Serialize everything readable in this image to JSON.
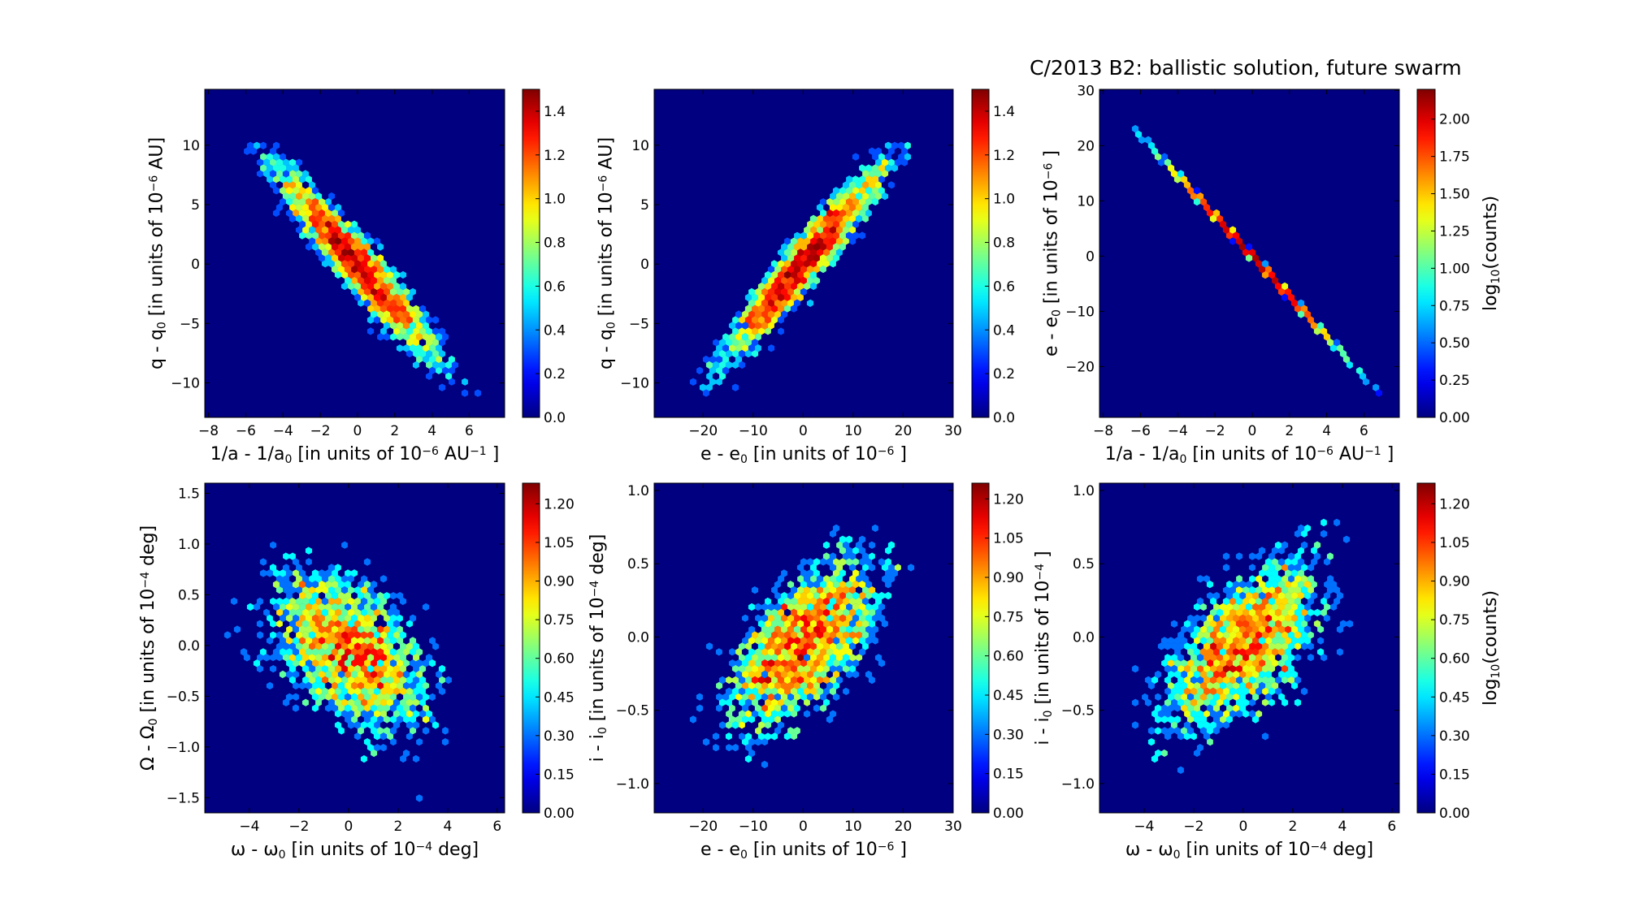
{
  "chart_data": {
    "type": "hexbin",
    "title": "C/2013 B2:  ballistic solution, future swarm",
    "colormap": "jet",
    "background_color": "#000080",
    "grid": false,
    "panels": [
      {
        "xlabel": [
          [
            "1/a - 1/a",
            ""
          ],
          [
            "0",
            "sub"
          ],
          [
            " [in units of 10",
            ""
          ],
          [
            "−6",
            "sup"
          ],
          [
            "  AU",
            ""
          ],
          [
            "−1",
            "sup"
          ],
          [
            " ]",
            ""
          ]
        ],
        "ylabel": [
          [
            "q - q",
            ""
          ],
          [
            "0",
            "sub"
          ],
          [
            "  [in units of 10",
            ""
          ],
          [
            "−6",
            "sup"
          ],
          [
            "  AU]",
            ""
          ]
        ],
        "xlim": [
          -8.2,
          7.9
        ],
        "ylim": [
          -12.9,
          14.7
        ],
        "xticks": [
          -8,
          -6,
          -4,
          -2,
          0,
          2,
          4,
          6
        ],
        "xtick_labels": [
          "−8",
          "−6",
          "−4",
          "−2",
          "0",
          "2",
          "4",
          "6"
        ],
        "yticks": [
          -10,
          -5,
          0,
          5,
          10
        ],
        "ytick_labels": [
          "−10",
          "−5",
          "0",
          "5",
          "10"
        ],
        "colorbar": {
          "range": [
            0,
            1.5
          ],
          "ticks": [
            0,
            0.2,
            0.4,
            0.6,
            0.8,
            1.0,
            1.2,
            1.4
          ],
          "tick_labels": [
            "0.0",
            "0.2",
            "0.4",
            "0.6",
            "0.8",
            "1.0",
            "1.2",
            "1.4"
          ],
          "label": []
        },
        "distribution": {
          "x_center": 0,
          "y_center": 0,
          "x_std": 2.3,
          "y_std": 4.3,
          "correlation": -0.95
        }
      },
      {
        "xlabel": [
          [
            "e - e",
            ""
          ],
          [
            "0",
            "sub"
          ],
          [
            " [in units of 10",
            ""
          ],
          [
            "−6",
            "sup"
          ],
          [
            " ]",
            ""
          ]
        ],
        "ylabel": [
          [
            "q - q",
            ""
          ],
          [
            "0",
            "sub"
          ],
          [
            "  [in units of 10",
            ""
          ],
          [
            "−6",
            "sup"
          ],
          [
            "  AU]",
            ""
          ]
        ],
        "xlim": [
          -29.8,
          30
        ],
        "ylim": [
          -12.9,
          14.7
        ],
        "xticks": [
          -20,
          -10,
          0,
          10,
          20,
          30
        ],
        "xtick_labels": [
          "−20",
          "−10",
          "0",
          "10",
          "20",
          "30"
        ],
        "yticks": [
          -10,
          -5,
          0,
          5,
          10
        ],
        "ytick_labels": [
          "−10",
          "−5",
          "0",
          "5",
          "10"
        ],
        "colorbar": {
          "range": [
            0,
            1.5
          ],
          "ticks": [
            0,
            0.2,
            0.4,
            0.6,
            0.8,
            1.0,
            1.2,
            1.4
          ],
          "tick_labels": [
            "0.0",
            "0.2",
            "0.4",
            "0.6",
            "0.8",
            "1.0",
            "1.2",
            "1.4"
          ],
          "label": []
        },
        "distribution": {
          "x_center": 0,
          "y_center": 0,
          "x_std": 8.4,
          "y_std": 4.3,
          "correlation": 0.95
        }
      },
      {
        "xlabel": [
          [
            "1/a - 1/a",
            ""
          ],
          [
            "0",
            "sub"
          ],
          [
            " [in units of 10",
            ""
          ],
          [
            "−6",
            "sup"
          ],
          [
            "  AU",
            ""
          ],
          [
            "−1",
            "sup"
          ],
          [
            " ]",
            ""
          ]
        ],
        "ylabel": [
          [
            "e - e",
            ""
          ],
          [
            "0",
            "sub"
          ],
          [
            "  [in units of 10",
            ""
          ],
          [
            "−6",
            "sup"
          ],
          [
            " ]",
            ""
          ]
        ],
        "xlim": [
          -8.2,
          7.9
        ],
        "ylim": [
          -29.2,
          30.2
        ],
        "xticks": [
          -8,
          -6,
          -4,
          -2,
          0,
          2,
          4,
          6
        ],
        "xtick_labels": [
          "−8",
          "−6",
          "−4",
          "−2",
          "0",
          "2",
          "4",
          "6"
        ],
        "yticks": [
          -20,
          -10,
          0,
          10,
          20,
          30
        ],
        "ytick_labels": [
          "−20",
          "−10",
          "0",
          "10",
          "20",
          "30"
        ],
        "colorbar": {
          "range": [
            0,
            2.2
          ],
          "ticks": [
            0,
            0.25,
            0.5,
            0.75,
            1.0,
            1.25,
            1.5,
            1.75,
            2.0
          ],
          "tick_labels": [
            "0.00",
            "0.25",
            "0.50",
            "0.75",
            "1.00",
            "1.25",
            "1.50",
            "1.75",
            "2.00"
          ],
          "label": [
            [
              "log",
              ""
            ],
            [
              "10",
              "sub"
            ],
            [
              "(counts)",
              ""
            ]
          ]
        },
        "distribution": {
          "x_center": 0,
          "y_center": 0,
          "x_std": 2.3,
          "y_std": 8.4,
          "correlation": -0.9999
        }
      },
      {
        "xlabel": [
          [
            "ω - ω",
            ""
          ],
          [
            "0",
            "sub"
          ],
          [
            " [in units of 10",
            ""
          ],
          [
            "−4",
            "sup"
          ],
          [
            "  deg]",
            ""
          ]
        ],
        "ylabel": [
          [
            "Ω - Ω",
            ""
          ],
          [
            "0",
            "sub"
          ],
          [
            "  [in units of 10",
            ""
          ],
          [
            "−4",
            "sup"
          ],
          [
            "  deg]",
            ""
          ]
        ],
        "xlim": [
          -5.8,
          6.3
        ],
        "ylim": [
          -1.65,
          1.6
        ],
        "xticks": [
          -4,
          -2,
          0,
          2,
          4,
          6
        ],
        "xtick_labels": [
          "−4",
          "−2",
          "0",
          "2",
          "4",
          "6"
        ],
        "yticks": [
          -1.5,
          -1.0,
          -0.5,
          0.0,
          0.5,
          1.0,
          1.5
        ],
        "ytick_labels": [
          "−1.5",
          "−1.0",
          "−0.5",
          "0.0",
          "0.5",
          "1.0",
          "1.5"
        ],
        "colorbar": {
          "range": [
            0,
            1.28
          ],
          "ticks": [
            0,
            0.15,
            0.3,
            0.45,
            0.6,
            0.75,
            0.9,
            1.05,
            1.2
          ],
          "tick_labels": [
            "0.00",
            "0.15",
            "0.30",
            "0.45",
            "0.60",
            "0.75",
            "0.90",
            "1.05",
            "1.20"
          ],
          "label": []
        },
        "distribution": {
          "x_center": 0,
          "y_center": -0.05,
          "x_std": 1.8,
          "y_std": 0.45,
          "correlation": -0.45
        }
      },
      {
        "xlabel": [
          [
            "e - e",
            ""
          ],
          [
            "0",
            "sub"
          ],
          [
            " [in units of 10",
            ""
          ],
          [
            "−6",
            "sup"
          ],
          [
            " ]",
            ""
          ]
        ],
        "ylabel": [
          [
            "i - i",
            ""
          ],
          [
            "0",
            "sub"
          ],
          [
            "  [in units of 10",
            ""
          ],
          [
            "−4",
            "sup"
          ],
          [
            "  deg]",
            ""
          ]
        ],
        "xlim": [
          -29.8,
          30
        ],
        "ylim": [
          -1.2,
          1.05
        ],
        "xticks": [
          -20,
          -10,
          0,
          10,
          20,
          30
        ],
        "xtick_labels": [
          "−20",
          "−10",
          "0",
          "10",
          "20",
          "30"
        ],
        "yticks": [
          -1.0,
          -0.5,
          0.0,
          0.5,
          1.0
        ],
        "ytick_labels": [
          "−1.0",
          "−0.5",
          "0.0",
          "0.5",
          "1.0"
        ],
        "colorbar": {
          "range": [
            0,
            1.26
          ],
          "ticks": [
            0,
            0.15,
            0.3,
            0.45,
            0.6,
            0.75,
            0.9,
            1.05,
            1.2
          ],
          "tick_labels": [
            "0.00",
            "0.15",
            "0.30",
            "0.45",
            "0.60",
            "0.75",
            "0.90",
            "1.05",
            "1.20"
          ],
          "label": []
        },
        "distribution": {
          "x_center": 0,
          "y_center": -0.05,
          "x_std": 8.4,
          "y_std": 0.33,
          "correlation": 0.6
        }
      },
      {
        "xlabel": [
          [
            "ω - ω",
            ""
          ],
          [
            "0",
            "sub"
          ],
          [
            " [in units of 10",
            ""
          ],
          [
            "−4",
            "sup"
          ],
          [
            "  deg]",
            ""
          ]
        ],
        "ylabel": [
          [
            "i - i",
            ""
          ],
          [
            "0",
            "sub"
          ],
          [
            "  [in units of 10",
            ""
          ],
          [
            "−4",
            "sup"
          ],
          [
            " ]",
            ""
          ]
        ],
        "xlim": [
          -5.8,
          6.3
        ],
        "ylim": [
          -1.2,
          1.05
        ],
        "xticks": [
          -4,
          -2,
          0,
          2,
          4,
          6
        ],
        "xtick_labels": [
          "−4",
          "−2",
          "0",
          "2",
          "4",
          "6"
        ],
        "yticks": [
          -1.0,
          -0.5,
          0.0,
          0.5,
          1.0
        ],
        "ytick_labels": [
          "−1.0",
          "−0.5",
          "0.0",
          "0.5",
          "1.0"
        ],
        "colorbar": {
          "range": [
            0,
            1.28
          ],
          "ticks": [
            0,
            0.15,
            0.3,
            0.45,
            0.6,
            0.75,
            0.9,
            1.05,
            1.2
          ],
          "tick_labels": [
            "0.00",
            "0.15",
            "0.30",
            "0.45",
            "0.60",
            "0.75",
            "0.90",
            "1.05",
            "1.20"
          ],
          "label": [
            [
              "log",
              ""
            ],
            [
              "10",
              "sub"
            ],
            [
              "(counts)",
              ""
            ]
          ]
        },
        "distribution": {
          "x_center": 0,
          "y_center": -0.05,
          "x_std": 1.8,
          "y_std": 0.33,
          "correlation": 0.6
        }
      }
    ]
  }
}
